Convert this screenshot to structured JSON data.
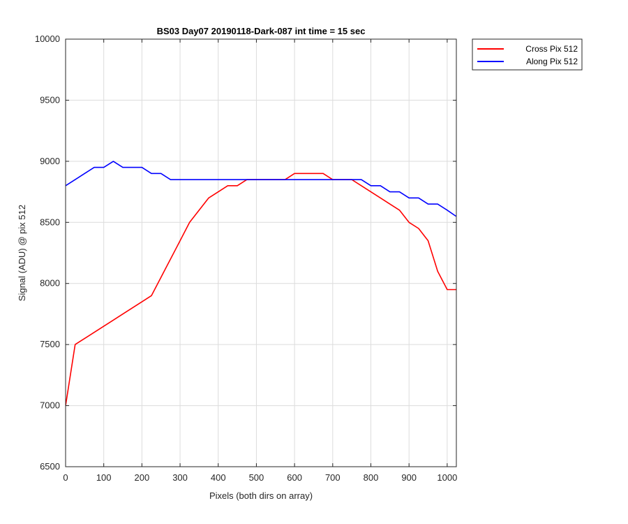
{
  "chart_data": {
    "type": "line",
    "title": "BS03 Day07 20190118-Dark-087 int time = 15 sec",
    "xlabel": "Pixels (both dirs on array)",
    "ylabel": "Signal (ADU) @ pix 512",
    "xlim": [
      0,
      1024
    ],
    "ylim": [
      6500,
      10000
    ],
    "xticks": [
      0,
      100,
      200,
      300,
      400,
      500,
      600,
      700,
      800,
      900,
      1000
    ],
    "yticks": [
      6500,
      7000,
      7500,
      8000,
      8500,
      9000,
      9500,
      10000
    ],
    "grid": true,
    "legend_position": "outside-top-right",
    "series": [
      {
        "name": "Cross Pix 512",
        "color": "#ff0000",
        "x": [
          0,
          25,
          50,
          75,
          100,
          125,
          150,
          175,
          200,
          225,
          250,
          275,
          300,
          325,
          350,
          375,
          400,
          425,
          450,
          475,
          500,
          525,
          550,
          575,
          600,
          625,
          650,
          675,
          700,
          725,
          750,
          775,
          800,
          825,
          850,
          875,
          900,
          925,
          950,
          975,
          1000,
          1023
        ],
        "y": [
          7000,
          7500,
          7550,
          7600,
          7650,
          7700,
          7750,
          7800,
          7850,
          7900,
          8050,
          8200,
          8350,
          8500,
          8600,
          8700,
          8750,
          8800,
          8800,
          8850,
          8850,
          8850,
          8850,
          8850,
          8900,
          8900,
          8900,
          8900,
          8850,
          8850,
          8850,
          8800,
          8750,
          8700,
          8650,
          8600,
          8500,
          8450,
          8350,
          8100,
          7950,
          7950
        ]
      },
      {
        "name": "Along Pix 512",
        "color": "#0000ff",
        "x": [
          0,
          25,
          50,
          75,
          100,
          125,
          150,
          175,
          200,
          225,
          250,
          275,
          300,
          325,
          350,
          375,
          400,
          425,
          450,
          475,
          500,
          525,
          550,
          575,
          600,
          625,
          650,
          675,
          700,
          725,
          750,
          775,
          800,
          825,
          850,
          875,
          900,
          925,
          950,
          975,
          1000,
          1023
        ],
        "y": [
          8800,
          8850,
          8900,
          8950,
          8950,
          9000,
          8950,
          8950,
          8950,
          8900,
          8900,
          8850,
          8850,
          8850,
          8850,
          8850,
          8850,
          8850,
          8850,
          8850,
          8850,
          8850,
          8850,
          8850,
          8850,
          8850,
          8850,
          8850,
          8850,
          8850,
          8850,
          8850,
          8800,
          8800,
          8750,
          8750,
          8700,
          8700,
          8650,
          8650,
          8600,
          8550
        ]
      }
    ]
  }
}
